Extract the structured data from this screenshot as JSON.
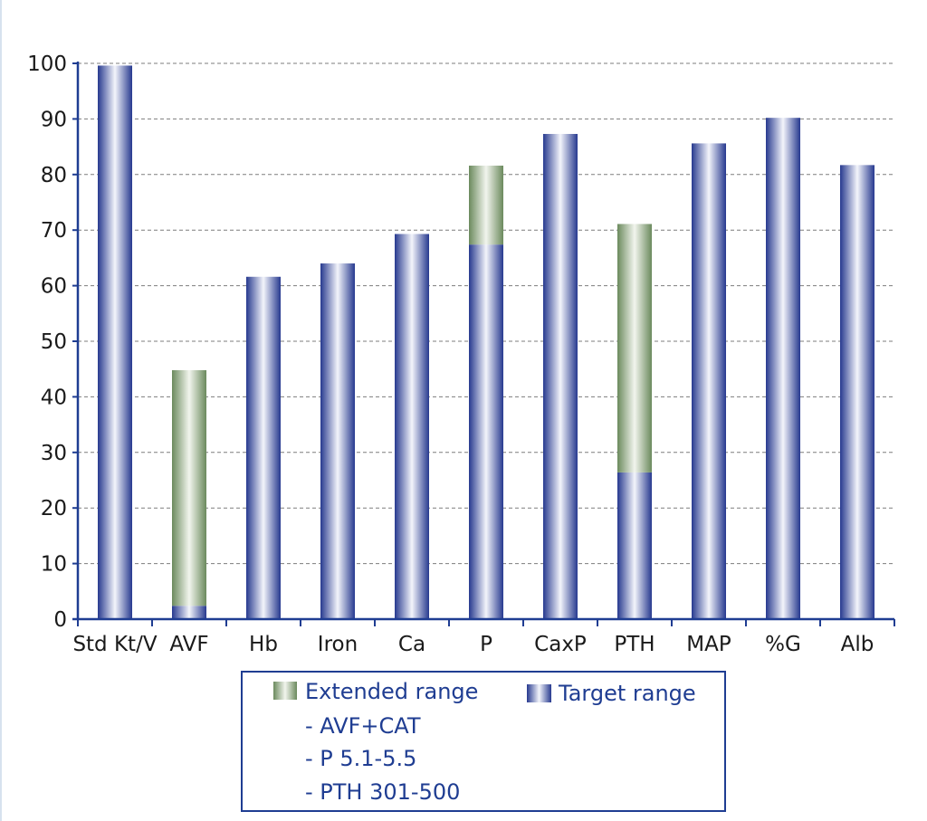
{
  "chart_data": {
    "type": "bar",
    "stacked": true,
    "title": "",
    "xlabel": "",
    "ylabel": "",
    "ylim": [
      0,
      100
    ],
    "yticks": [
      0,
      10,
      20,
      30,
      40,
      50,
      60,
      70,
      80,
      90,
      100
    ],
    "grid": "horizontal dashed",
    "categories": [
      "Std Kt/V",
      "AVF",
      "Hb",
      "Iron",
      "Ca",
      "P",
      "CaxP",
      "PTH",
      "MAP",
      "%G",
      "Alb"
    ],
    "series": [
      {
        "name": "Target range",
        "color": "#3a4fa8",
        "values": [
          99.6,
          2.4,
          61.6,
          64.0,
          69.3,
          67.4,
          87.3,
          26.4,
          85.6,
          90.2,
          81.7
        ]
      },
      {
        "name": "Extended range",
        "color": "#7d9a6e",
        "values": [
          0,
          42.4,
          0,
          0,
          0,
          14.2,
          0,
          44.7,
          0,
          0,
          0
        ]
      }
    ],
    "legend": {
      "placement": "bottom",
      "extended_label": "Extended range",
      "target_label": "Target range",
      "notes": [
        "- AVF+CAT",
        "- P 5.1-5.5",
        "- PTH 301-500"
      ]
    }
  }
}
